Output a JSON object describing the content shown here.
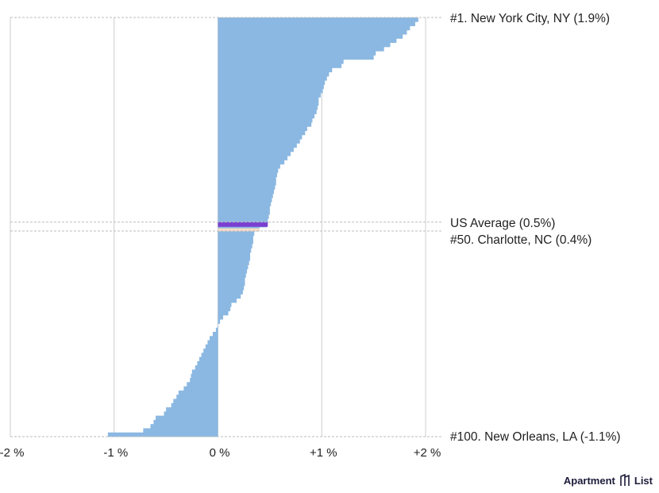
{
  "chart_data": {
    "type": "bar",
    "orientation": "horizontal",
    "sorted": "descending",
    "x_unit": "%",
    "xlim": [
      -2.0,
      2.0
    ],
    "x_ticks": [
      {
        "value": -2,
        "label": "-2 %"
      },
      {
        "value": -1,
        "label": "-1 %"
      },
      {
        "value": 0,
        "label": "0 %"
      },
      {
        "value": 1,
        "label": "+1 %"
      },
      {
        "value": 2,
        "label": "+2 %"
      }
    ],
    "grid": true,
    "series": [
      {
        "values": [
          1.93,
          1.9,
          1.85,
          1.82,
          1.78,
          1.72,
          1.66,
          1.6,
          1.52,
          1.5,
          1.21,
          1.19,
          1.1,
          1.07,
          1.05,
          1.03,
          1.02,
          1.01,
          0.99,
          0.97,
          0.97,
          0.96,
          0.95,
          0.93,
          0.91,
          0.9,
          0.86,
          0.84,
          0.81,
          0.79,
          0.76,
          0.73,
          0.7,
          0.67,
          0.64,
          0.6,
          0.58,
          0.57,
          0.56,
          0.56,
          0.55,
          0.54,
          0.53,
          0.52,
          0.51,
          0.5,
          0.5,
          0.49,
          0.48,
          0.47,
          0.4,
          0.35,
          0.34,
          0.34,
          0.33,
          0.32,
          0.31,
          0.31,
          0.3,
          0.29,
          0.28,
          0.27,
          0.26,
          0.26,
          0.25,
          0.24,
          0.22,
          0.18,
          0.13,
          0.12,
          0.1,
          0.05,
          0.02,
          0.0,
          -0.02,
          -0.05,
          -0.08,
          -0.1,
          -0.12,
          -0.14,
          -0.16,
          -0.18,
          -0.2,
          -0.22,
          -0.25,
          -0.26,
          -0.27,
          -0.3,
          -0.33,
          -0.38,
          -0.4,
          -0.43,
          -0.45,
          -0.5,
          -0.52,
          -0.6,
          -0.62,
          -0.65,
          -0.72,
          -1.06
        ]
      }
    ],
    "highlights": [
      {
        "label": "US Average (0.5%)",
        "value": 0.48,
        "color": "#7a3fd1"
      },
      {
        "label": "#50. Charlotte, NC (0.4%)",
        "rank": 50,
        "value": 0.4,
        "color": "#f7dcc7"
      }
    ],
    "callouts": [
      {
        "label": "#1. New York City, NY (1.9%)",
        "rank": 1
      },
      {
        "label": "#100. New Orleans, LA (-1.1%)",
        "rank": 100
      }
    ],
    "bar_color": "#8bb8e2"
  },
  "branding": {
    "text": "Apartment",
    "text2": "List"
  }
}
